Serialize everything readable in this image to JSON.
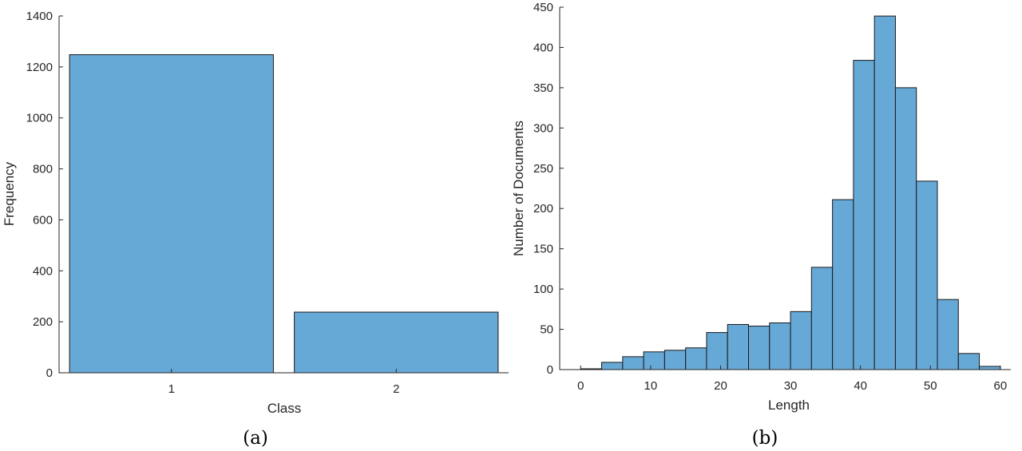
{
  "bar_color": "#66a8d6",
  "chart_data": [
    {
      "panel": "(a)",
      "type": "bar",
      "categories": [
        "1",
        "2"
      ],
      "values": [
        1248,
        238
      ],
      "xlabel": "Class",
      "ylabel": "Frequency",
      "ylim": [
        0,
        1400
      ],
      "yticks": [
        0,
        200,
        400,
        600,
        800,
        1000,
        1200,
        1400
      ],
      "grid": false
    },
    {
      "panel": "(b)",
      "type": "bar",
      "subtype": "histogram",
      "bin_edges": [
        0,
        3,
        6,
        9,
        12,
        15,
        18,
        21,
        24,
        27,
        30,
        33,
        36,
        39,
        42,
        45,
        48,
        51,
        54,
        57,
        60
      ],
      "values": [
        1,
        9,
        16,
        22,
        24,
        27,
        46,
        56,
        54,
        58,
        72,
        127,
        211,
        384,
        439,
        350,
        234,
        87,
        20,
        4
      ],
      "xlabel": "Length",
      "ylabel": "Number of Documents",
      "xlim": [
        -3,
        61.5
      ],
      "ylim": [
        0,
        450
      ],
      "xticks": [
        0,
        10,
        20,
        30,
        40,
        50,
        60
      ],
      "yticks": [
        0,
        50,
        100,
        150,
        200,
        250,
        300,
        350,
        400,
        450
      ],
      "grid": false
    }
  ]
}
